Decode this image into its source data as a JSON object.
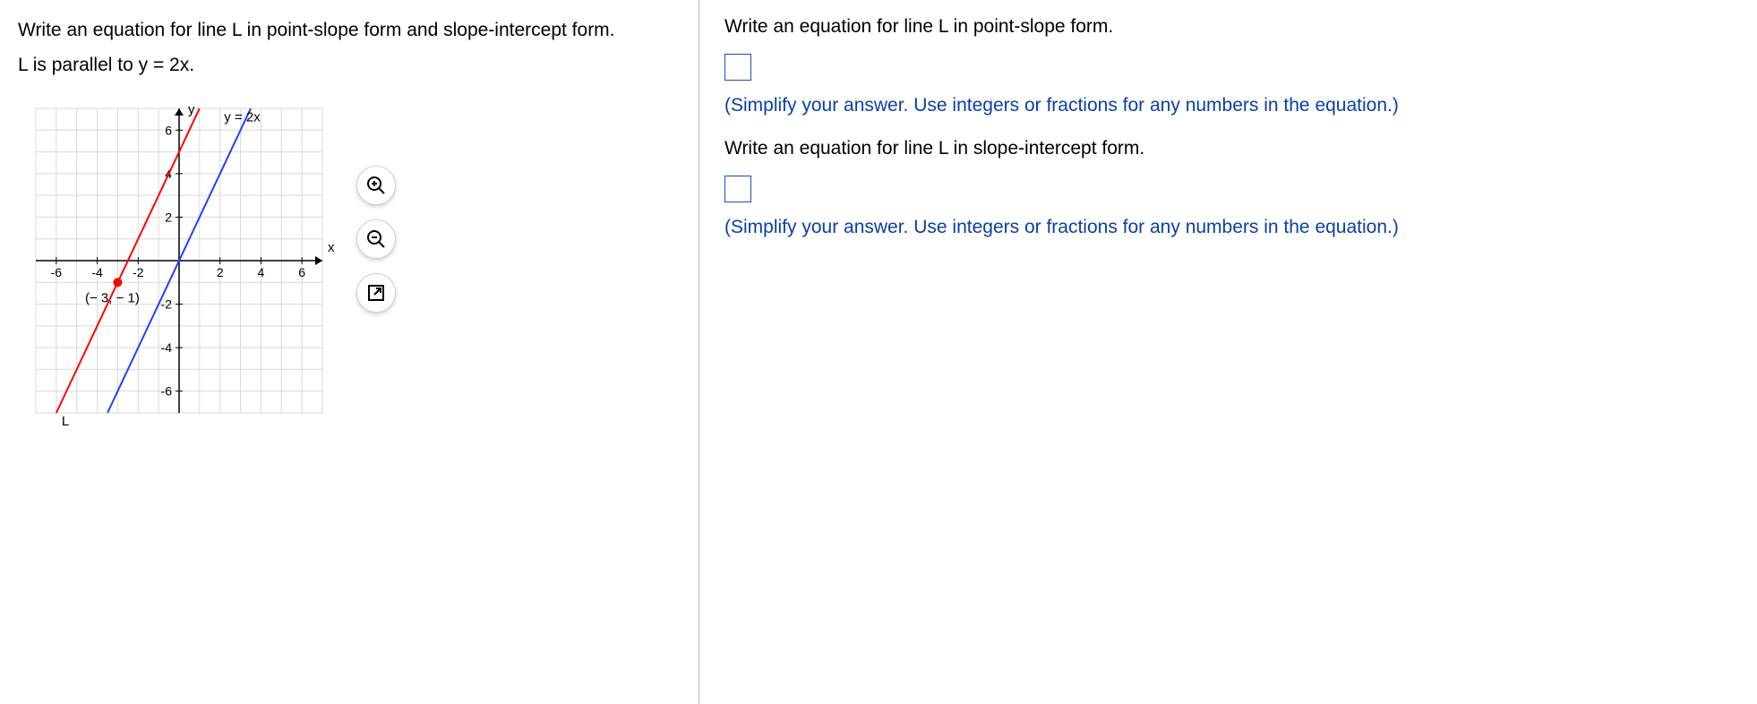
{
  "left": {
    "question": "Write an equation for line L in point-slope form and slope-intercept form.",
    "condition": "L is parallel to y = 2x.",
    "graph": {
      "xmin": -7,
      "xmax": 7,
      "ymin": -7,
      "ymax": 7,
      "grid_step": 1,
      "x_ticks": [
        -6,
        -4,
        -2,
        2,
        4,
        6
      ],
      "y_ticks": [
        -6,
        -4,
        -2,
        2,
        4,
        6
      ],
      "axis_color": "#000000",
      "grid_color": "#d9d9d9",
      "bg": "#ffffff",
      "y_axis_label": "y",
      "x_axis_label": "x",
      "line_ref": {
        "label": "y = 2x",
        "slope": 2,
        "intercept": 0,
        "color": "#2040ff",
        "width": 2
      },
      "line_L": {
        "label": "L",
        "slope": 2,
        "intercept": 5,
        "color": "#ff0000",
        "width": 2,
        "point": {
          "x": -3,
          "y": -1,
          "label": "(− 3, − 1)",
          "color": "#ff0000"
        }
      },
      "tick_fontsize": 14,
      "label_fontsize": 15
    }
  },
  "right": {
    "prompt1": "Write an equation for line L in point-slope form.",
    "hint1": "(Simplify your answer. Use integers or fractions for any numbers in the equation.)",
    "prompt2": "Write an equation for line L in slope-intercept form.",
    "hint2": "(Simplify your answer. Use integers or fractions for any numbers in the equation.)"
  },
  "controls": {
    "zoom_in": "zoom-in",
    "zoom_out": "zoom-out",
    "popout": "popout"
  }
}
